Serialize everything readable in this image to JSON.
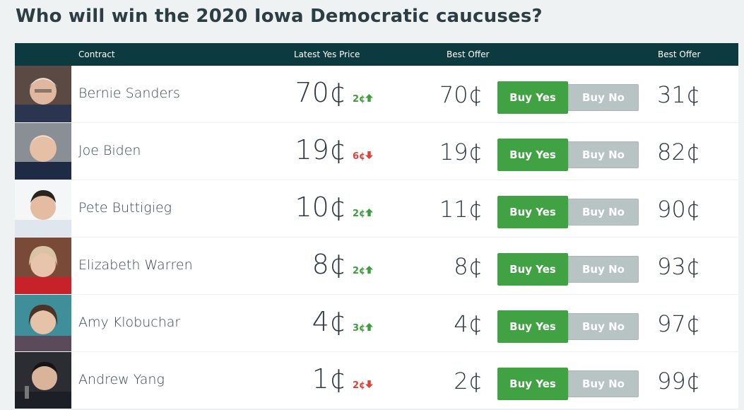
{
  "page": {
    "title": "Who will win the 2020 Iowa Democratic caucuses?"
  },
  "table": {
    "headers": {
      "contract": "Contract",
      "latest_yes": "Latest Yes Price",
      "best_offer_yes": "Best Offer",
      "best_offer_no": "Best Offer"
    },
    "rows": [
      {
        "name": "Bernie Sanders",
        "price": "70¢",
        "change": "2¢",
        "direction": "up",
        "yes_offer": "70¢",
        "buy_yes": "Buy Yes",
        "buy_no": "Buy No",
        "no_offer": "31¢"
      },
      {
        "name": "Joe Biden",
        "price": "19¢",
        "change": "6¢",
        "direction": "down",
        "yes_offer": "19¢",
        "buy_yes": "Buy Yes",
        "buy_no": "Buy No",
        "no_offer": "82¢"
      },
      {
        "name": "Pete Buttigieg",
        "price": "10¢",
        "change": "2¢",
        "direction": "up",
        "yes_offer": "11¢",
        "buy_yes": "Buy Yes",
        "buy_no": "Buy No",
        "no_offer": "90¢"
      },
      {
        "name": "Elizabeth Warren",
        "price": "8¢",
        "change": "2¢",
        "direction": "up",
        "yes_offer": "8¢",
        "buy_yes": "Buy Yes",
        "buy_no": "Buy No",
        "no_offer": "93¢"
      },
      {
        "name": "Amy Klobuchar",
        "price": "4¢",
        "change": "3¢",
        "direction": "up",
        "yes_offer": "4¢",
        "buy_yes": "Buy Yes",
        "buy_no": "Buy No",
        "no_offer": "97¢"
      },
      {
        "name": "Andrew Yang",
        "price": "1¢",
        "change": "2¢",
        "direction": "down",
        "yes_offer": "2¢",
        "buy_yes": "Buy Yes",
        "buy_no": "Buy No",
        "no_offer": "99¢"
      }
    ]
  },
  "colors": {
    "header_bg": "#0d3a3f",
    "buy_yes": "#41a243",
    "buy_no": "#b7c4c3",
    "up": "#3f9c3f",
    "down": "#d9443a"
  },
  "icons": {
    "up": "arrow-up-icon",
    "down": "arrow-down-icon"
  }
}
